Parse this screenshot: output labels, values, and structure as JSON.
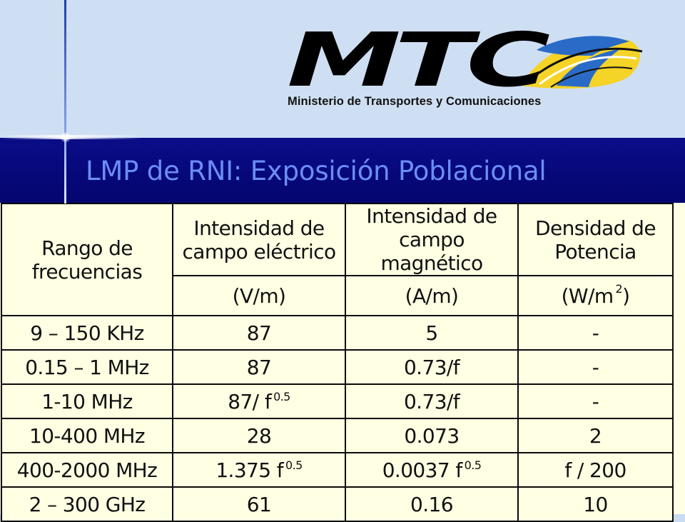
{
  "logo": {
    "text": "MTC",
    "subtitle": "Ministerio de Transportes y Comunicaciones",
    "colors": {
      "text": "#000000",
      "yellow": "#f5d327",
      "blue": "#2a6bc7"
    }
  },
  "title": "LMP de RNI: Exposición Poblacional",
  "table": {
    "headers": [
      {
        "line1": "Rango de",
        "line2": "frecuencias",
        "unit": "",
        "unit_sup": ""
      },
      {
        "line1": "Intensidad de",
        "line2": "campo eléctrico",
        "unit": "(V/m)",
        "unit_sup": ""
      },
      {
        "line1": "Intensidad de",
        "line2": "campo magnético",
        "unit": "(A/m)",
        "unit_sup": ""
      },
      {
        "line1": "Densidad de",
        "line2": "Potencia",
        "unit": "(W/m",
        "unit_sup": "2",
        "unit_close": ")"
      }
    ],
    "rows": [
      {
        "range": "9 – 150 KHz",
        "e": "87",
        "e_sup": "",
        "h": "5",
        "h_sup": "",
        "s": "-"
      },
      {
        "range": "0.15 – 1 MHz",
        "e": "87",
        "e_sup": "",
        "h": "0.73/f",
        "h_sup": "",
        "s": "-"
      },
      {
        "range": "1-10 MHz",
        "e": "87/ f",
        "e_sup": "0.5",
        "h": "0.73/f",
        "h_sup": "",
        "s": "-"
      },
      {
        "range": "10-400 MHz",
        "e": "28",
        "e_sup": "",
        "h": "0.073",
        "h_sup": "",
        "s": "2"
      },
      {
        "range": "400-2000 MHz",
        "e": "1.375 f",
        "e_sup": "0.5",
        "h": "0.0037 f",
        "h_sup": "0.5",
        "s": "f / 200"
      },
      {
        "range": "2 – 300 GHz",
        "e": "61",
        "e_sup": "",
        "h": "0.16",
        "h_sup": "",
        "s": "10"
      }
    ]
  }
}
